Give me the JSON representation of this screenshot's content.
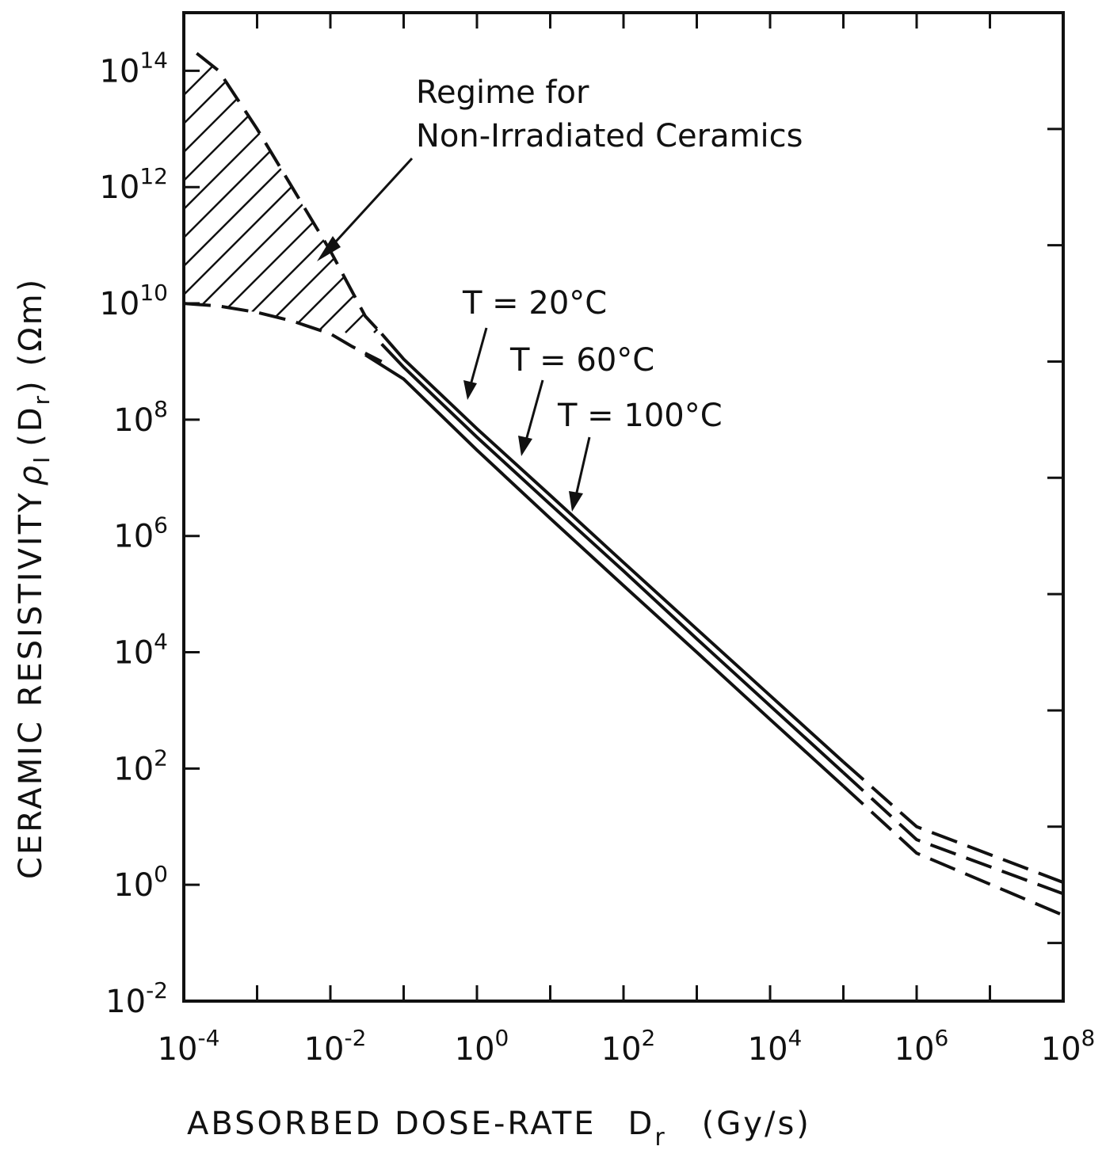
{
  "chart_data": {
    "type": "line",
    "xlabel": "ABSORBED DOSE-RATE",
    "xlabel_symbol": "D",
    "xlabel_sub": "r",
    "xlabel_unit": "(Gy/s)",
    "ylabel": "CERAMIC RESISTIVITY",
    "ylabel_symbol": "ρ",
    "ylabel_sub": "I",
    "ylabel_arg": "(D",
    "ylabel_arg_sub": "r",
    "ylabel_unit": ") (Ωm)",
    "x_scale": "log",
    "y_scale": "log",
    "xlim": [
      0.0001,
      100000000
    ],
    "ylim": [
      0.01,
      1000000000000000
    ],
    "grid": false,
    "x_ticks": [
      {
        "base": "10",
        "exp": "-4",
        "value": 0.0001
      },
      {
        "base": "10",
        "exp": "-2",
        "value": 0.01
      },
      {
        "base": "10",
        "exp": "0",
        "value": 1
      },
      {
        "base": "10",
        "exp": "2",
        "value": 100
      },
      {
        "base": "10",
        "exp": "4",
        "value": 10000
      },
      {
        "base": "10",
        "exp": "6",
        "value": 1000000
      },
      {
        "base": "10",
        "exp": "8",
        "value": 100000000
      }
    ],
    "y_ticks": [
      {
        "base": "10",
        "exp": "-2",
        "value": 0.01
      },
      {
        "base": "10",
        "exp": "0",
        "value": 1
      },
      {
        "base": "10",
        "exp": "2",
        "value": 100
      },
      {
        "base": "10",
        "exp": "4",
        "value": 10000
      },
      {
        "base": "10",
        "exp": "6",
        "value": 1000000
      },
      {
        "base": "10",
        "exp": "8",
        "value": 100000000
      },
      {
        "base": "10",
        "exp": "10",
        "value": 10000000000
      },
      {
        "base": "10",
        "exp": "12",
        "value": 1000000000000
      },
      {
        "base": "10",
        "exp": "14",
        "value": 100000000000000
      }
    ],
    "regime": {
      "label_lines": [
        "Regime  for",
        "Non-Irradiated Ceramics"
      ],
      "upper_boundary": [
        [
          0.00015,
          200000000000000.0
        ],
        [
          0.0003,
          100000000000000.0
        ],
        [
          0.001,
          10000000000000.0
        ],
        [
          0.003,
          1000000000000.0
        ],
        [
          0.01,
          80000000000.0
        ],
        [
          0.03,
          6000000000.0
        ],
        [
          0.05,
          3000000000.0
        ]
      ],
      "lower_boundary": [
        [
          0.0001,
          10000000000.0
        ],
        [
          0.0003,
          9000000000.0
        ],
        [
          0.001,
          7000000000.0
        ],
        [
          0.003,
          5000000000.0
        ],
        [
          0.01,
          3000000000.0
        ],
        [
          0.02,
          1800000000.0
        ],
        [
          0.05,
          1000000000.0
        ]
      ]
    },
    "series": [
      {
        "label": "T = 20°C",
        "values": [
          [
            0.05,
            3000000000.0
          ],
          [
            0.1,
            1100000000.0
          ],
          [
            1,
            70000000.0
          ],
          [
            10,
            5000000.0
          ],
          [
            100,
            350000.0
          ],
          [
            1000,
            25000.0
          ],
          [
            10000,
            1800.0
          ],
          [
            100000,
            130
          ],
          [
            1000000,
            10
          ],
          [
            100000000,
            1.1
          ]
        ]
      },
      {
        "label": "T = 60°C",
        "values": [
          [
            0.05,
            2000000000.0
          ],
          [
            0.1,
            800000000.0
          ],
          [
            1,
            50000000.0
          ],
          [
            10,
            3500000.0
          ],
          [
            100,
            250000.0
          ],
          [
            1000,
            17000.0
          ],
          [
            10000,
            1200.0
          ],
          [
            100000,
            85
          ],
          [
            1000000,
            6
          ],
          [
            100000000,
            0.7
          ]
        ]
      },
      {
        "label": "T = 100°C",
        "values": [
          [
            0.03,
            1300000000.0
          ],
          [
            0.1,
            500000000.0
          ],
          [
            1,
            30000000.0
          ],
          [
            10,
            2000000.0
          ],
          [
            100,
            140000.0
          ],
          [
            1000,
            10000.0
          ],
          [
            10000,
            700
          ],
          [
            100000,
            50
          ],
          [
            1000000,
            3.5
          ],
          [
            100000000,
            0.3
          ]
        ]
      }
    ],
    "extrapolated_beyond_x": 100000
  }
}
